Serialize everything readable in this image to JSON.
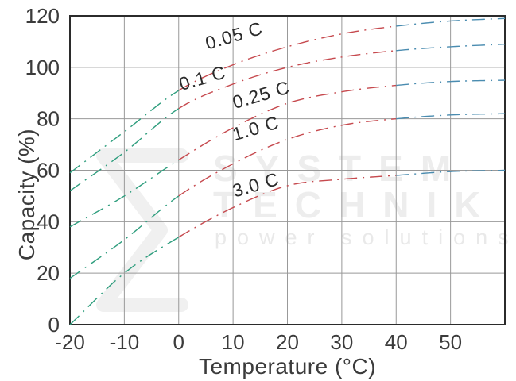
{
  "chart_data": {
    "type": "line",
    "title": "",
    "xlabel": "Temperature (°C)",
    "ylabel": "Capacity (%)",
    "xlim": [
      -20,
      60
    ],
    "ylim": [
      0,
      120
    ],
    "x_ticks": [
      -20,
      -10,
      0,
      10,
      20,
      30,
      40,
      50
    ],
    "y_ticks": [
      0,
      20,
      40,
      60,
      80,
      100,
      120
    ],
    "grid": true,
    "line_style": "dash-dot",
    "x": [
      -20,
      -10,
      0,
      10,
      20,
      30,
      40,
      50,
      60
    ],
    "series": [
      {
        "name": "0.05 C",
        "values": [
          59,
          75,
          91,
          101,
          108,
          113,
          116,
          118,
          119
        ],
        "label": {
          "x": 10.5,
          "y": 110,
          "rotate": -16
        }
      },
      {
        "name": "0.1 C",
        "values": [
          52,
          67,
          84,
          93.5,
          100,
          104,
          106.5,
          108,
          109
        ],
        "label": {
          "x": 4.7,
          "y": 93.5,
          "rotate": -16
        }
      },
      {
        "name": "0.25 C",
        "values": [
          38,
          50,
          64,
          76.5,
          86,
          90.5,
          93,
          94.5,
          95
        ],
        "label": {
          "x": 15.5,
          "y": 87,
          "rotate": -16
        }
      },
      {
        "name": "1.0 C",
        "values": [
          18,
          33,
          50,
          62.5,
          72,
          77.5,
          80,
          81.5,
          82
        ],
        "label": {
          "x": 14.5,
          "y": 74,
          "rotate": -16
        }
      },
      {
        "name": "3.0 C",
        "values": [
          0,
          20,
          34,
          45.5,
          54,
          56.5,
          58,
          59.5,
          60
        ],
        "label": {
          "x": 14.5,
          "y": 52,
          "rotate": -16
        }
      }
    ],
    "color_zones": [
      {
        "t_range": [
          -20,
          0
        ],
        "color": "#2F9E7E"
      },
      {
        "t_range": [
          0,
          40
        ],
        "color": "#C6494E"
      },
      {
        "t_range": [
          40,
          60
        ],
        "color": "#4A8CB0"
      }
    ],
    "grid_color": "#999999",
    "frame_color": "#2B2B2B",
    "tick_text_color": "#3B3B3B",
    "curve_label_color": "#2B2B2B"
  },
  "watermark": {
    "line1": "SYSTEM",
    "line2": "TECHNIK",
    "line3": "power solutions"
  }
}
